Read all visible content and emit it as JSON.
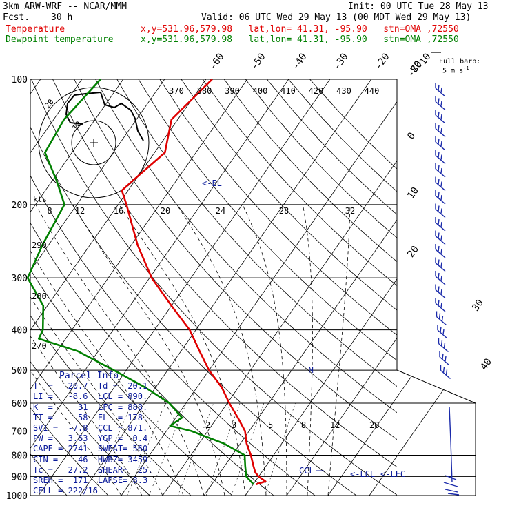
{
  "header": {
    "model": "3km ARW-WRF -- NCAR/MMM",
    "init": "Init: 00 UTC Tue 28 May 13",
    "fcst_label": "Fcst.",
    "fcst_value": "30 h",
    "valid": "Valid: 06 UTC Wed 29 May 13 (00 MDT Wed 29 May 13)",
    "temp_label": "Temperature",
    "dew_label": "Dewpoint temperature",
    "temp_info": "x,y=531.96,579.98   lat,lon= 41.31, -95.90   stn=OMA ,72550",
    "dew_info": "x,y=531.96,579.98   lat,lon= 41.31, -95.90   stn=OMA ,72550",
    "barb_note_1": "Full barb:",
    "barb_note_2": "5 m s",
    "barb_note_exp": "-1"
  },
  "hodograph": {
    "speed_unit": "kts",
    "ring_labels": [
      "20",
      "10"
    ]
  },
  "parcel_info": {
    "title": "Parcel Info",
    "rows": [
      "T  =   20.7  Td =  20.1",
      "LI =   -8.6  LCL = 890.",
      "K  =     31  LFC = 888.",
      "TT =     58  EL  = 178.",
      "SVI =  -7.8  CCL = 871.",
      "PW =   3.63  YGP =  0.4",
      "CAPE = 2741  SWEAT= 560",
      "CIN =   -46  HWBZ= 3459.",
      "Tc =   27.2  SHEAR=  25.",
      "SREH =  171  LAPSE= 8.3",
      "CELL = 222/16"
    ]
  },
  "annotations": {
    "el": "<-EL",
    "ccl": "CCL",
    "lcl": "<-LCL",
    "lfc": "<-LFC",
    "melting": "M"
  },
  "chart_data": {
    "type": "line",
    "title": "",
    "xlabel": "",
    "ylabel": "",
    "pressure_levels": [
      100,
      200,
      300,
      400,
      500,
      600,
      700,
      800,
      900,
      1000
    ],
    "isotherm_labels": [
      -80,
      -70,
      -60,
      -50,
      -40,
      -30,
      -20,
      -10,
      0,
      10,
      20,
      30,
      40
    ],
    "theta_labels": [
      370,
      380,
      390,
      400,
      410,
      420,
      430,
      440
    ],
    "dry_adiabat_labels": [
      290,
      280,
      270
    ],
    "mixing_ratio_labels": [
      2,
      3,
      5,
      8,
      12,
      20
    ],
    "hodo_speed_labels": [
      8,
      12,
      16,
      20,
      24,
      28,
      32
    ],
    "series": [
      {
        "name": "Temperature",
        "color": "#e00000",
        "points": [
          [
            100,
            -58.5
          ],
          [
            125,
            -61.5
          ],
          [
            150,
            -57.5
          ],
          [
            175,
            -60.5
          ],
          [
            185,
            -61.5
          ],
          [
            200,
            -58.0
          ],
          [
            250,
            -48.5
          ],
          [
            300,
            -39.5
          ],
          [
            350,
            -30.0
          ],
          [
            400,
            -21.5
          ],
          [
            450,
            -15.5
          ],
          [
            500,
            -10.0
          ],
          [
            550,
            -4.0
          ],
          [
            600,
            0.5
          ],
          [
            650,
            5.0
          ],
          [
            700,
            9.0
          ],
          [
            750,
            11.5
          ],
          [
            800,
            14.5
          ],
          [
            850,
            17.0
          ],
          [
            880,
            18.5
          ],
          [
            900,
            20.0
          ],
          [
            925,
            22.5
          ],
          [
            940,
            20.7
          ]
        ]
      },
      {
        "name": "Dewpoint temperature",
        "color": "#008000",
        "points": [
          [
            100,
            -85.5
          ],
          [
            125,
            -87.5
          ],
          [
            150,
            -86.5
          ],
          [
            175,
            -79.0
          ],
          [
            200,
            -73.0
          ],
          [
            250,
            -71.5
          ],
          [
            300,
            -69.5
          ],
          [
            350,
            -61.0
          ],
          [
            400,
            -57.0
          ],
          [
            420,
            -56.5
          ],
          [
            450,
            -45.0
          ],
          [
            500,
            -33.0
          ],
          [
            550,
            -22.5
          ],
          [
            600,
            -14.0
          ],
          [
            650,
            -8.5
          ],
          [
            680,
            -10.0
          ],
          [
            700,
            -4.0
          ],
          [
            750,
            6.0
          ],
          [
            800,
            13.0
          ],
          [
            850,
            15.0
          ],
          [
            900,
            17.0
          ],
          [
            940,
            20.1
          ]
        ]
      }
    ],
    "parcel_levels_hpa": {
      "EL": 178,
      "CCL": 871,
      "LCL": 890,
      "LFC": 888
    },
    "wind_barb_count": 22,
    "grid": true,
    "legend": "top-left"
  }
}
